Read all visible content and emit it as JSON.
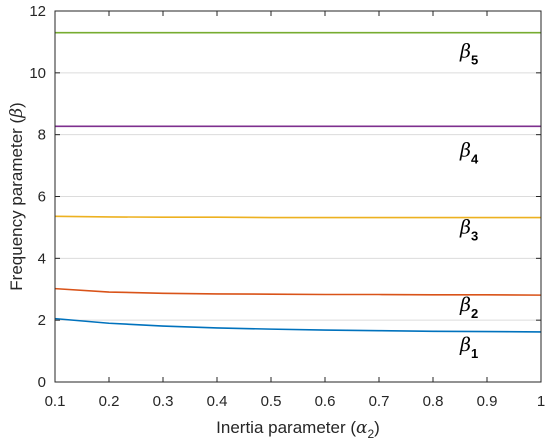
{
  "chart_data": {
    "type": "line",
    "title": "",
    "xlabel": "Inertia parameter",
    "xlabel_symbol": "α",
    "xlabel_subscript": "2",
    "ylabel": "Frequency parameter",
    "ylabel_symbol": "β",
    "xlim": [
      0.1,
      1
    ],
    "ylim": [
      0,
      12
    ],
    "x_ticks": [
      "0.1",
      "0.2",
      "0.3",
      "0.4",
      "0.5",
      "0.6",
      "0.7",
      "0.8",
      "0.9",
      "1"
    ],
    "y_ticks": [
      "0",
      "2",
      "4",
      "6",
      "8",
      "10",
      "12"
    ],
    "grid": "horizontal",
    "x": [
      0.1,
      0.2,
      0.3,
      0.4,
      0.5,
      0.6,
      0.7,
      0.8,
      0.9,
      1.0
    ],
    "series": [
      {
        "label_symbol": "β",
        "label_subscript": "1",
        "color": "#0072BD",
        "values": [
          2.05,
          1.9,
          1.81,
          1.75,
          1.71,
          1.68,
          1.66,
          1.64,
          1.63,
          1.62
        ],
        "label_pos": [
          0.85,
          1.0
        ]
      },
      {
        "label_symbol": "β",
        "label_subscript": "2",
        "color": "#D95319",
        "values": [
          3.02,
          2.91,
          2.87,
          2.85,
          2.84,
          2.83,
          2.83,
          2.82,
          2.82,
          2.81
        ],
        "label_pos": [
          0.85,
          2.3
        ]
      },
      {
        "label_symbol": "β",
        "label_subscript": "3",
        "color": "#EDB120",
        "values": [
          5.36,
          5.34,
          5.33,
          5.33,
          5.32,
          5.32,
          5.32,
          5.32,
          5.32,
          5.32
        ],
        "label_pos": [
          0.85,
          4.8
        ]
      },
      {
        "label_symbol": "β",
        "label_subscript": "4",
        "color": "#7E2F8E",
        "values": [
          8.27,
          8.27,
          8.27,
          8.27,
          8.27,
          8.27,
          8.27,
          8.27,
          8.27,
          8.27
        ],
        "label_pos": [
          0.85,
          7.3
        ]
      },
      {
        "label_symbol": "β",
        "label_subscript": "5",
        "color": "#77AC30",
        "values": [
          11.3,
          11.3,
          11.3,
          11.3,
          11.3,
          11.3,
          11.3,
          11.3,
          11.3,
          11.3
        ],
        "label_pos": [
          0.85,
          10.5
        ]
      }
    ]
  }
}
